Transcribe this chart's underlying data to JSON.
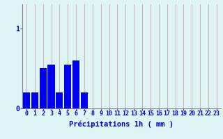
{
  "values": [
    0.2,
    0.2,
    0.5,
    0.55,
    0.2,
    0.55,
    0.6,
    0.2,
    0.0,
    0.0,
    0.0,
    0.0,
    0.0,
    0.0,
    0.0,
    0.0,
    0.0,
    0.0,
    0.0,
    0.0,
    0.0,
    0.0,
    0.0,
    0.0
  ],
  "bar_color": "#0000ee",
  "background_color": "#dff4f4",
  "grid_color": "#c8a8a8",
  "xlabel": "Précipitations 1h ( mm )",
  "xlabel_color": "#0000cc",
  "ytick_color": "#0000cc",
  "xtick_color": "#0000cc",
  "ylim": [
    0,
    1.3
  ],
  "xlim": [
    -0.5,
    23.5
  ],
  "bar_width": 0.85,
  "yticks": [
    0,
    1
  ],
  "xticks": [
    0,
    1,
    2,
    3,
    4,
    5,
    6,
    7,
    8,
    9,
    10,
    11,
    12,
    13,
    14,
    15,
    16,
    17,
    18,
    19,
    20,
    21,
    22,
    23
  ],
  "spine_color": "#808080",
  "tick_font_size": 6.0,
  "xlabel_font_size": 7.5,
  "ytick_font_size": 7.0
}
